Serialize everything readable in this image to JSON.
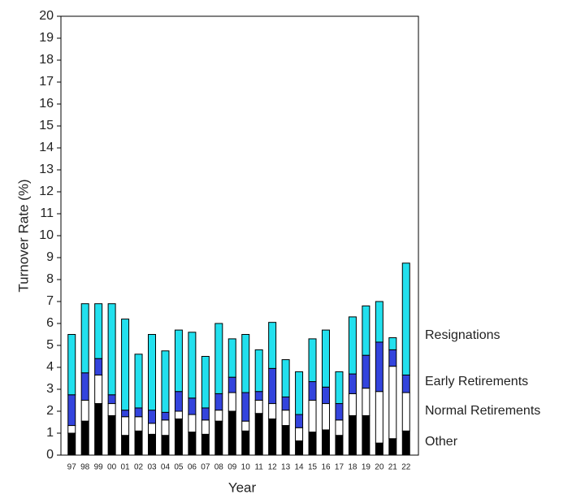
{
  "chart_data": {
    "type": "stacked_bar",
    "ylabel": "Turnover Rate (%)",
    "xlabel": "Year",
    "categories": [
      "97",
      "98",
      "99",
      "00",
      "01",
      "02",
      "03",
      "04",
      "05",
      "06",
      "07",
      "08",
      "09",
      "10",
      "11",
      "12",
      "13",
      "14",
      "15",
      "16",
      "17",
      "18",
      "19",
      "20",
      "21",
      "22"
    ],
    "series": [
      {
        "name": "Other",
        "color": "#000000",
        "values": [
          1.0,
          1.55,
          2.35,
          1.8,
          0.9,
          1.1,
          0.95,
          0.9,
          1.65,
          1.05,
          0.95,
          1.55,
          2.0,
          1.1,
          1.9,
          1.65,
          1.35,
          0.65,
          1.05,
          1.15,
          0.9,
          1.8,
          1.8,
          0.55,
          0.75,
          1.1
        ]
      },
      {
        "name": "Normal Retirements",
        "color": "#ffffff",
        "values": [
          0.35,
          0.95,
          1.3,
          0.55,
          0.85,
          0.65,
          0.5,
          0.7,
          0.35,
          0.8,
          0.65,
          0.5,
          0.85,
          0.45,
          0.6,
          0.7,
          0.7,
          0.6,
          1.45,
          1.2,
          0.7,
          1.0,
          1.25,
          2.35,
          3.3,
          1.75
        ]
      },
      {
        "name": "Early Retirements",
        "color": "#3344dd",
        "values": [
          1.4,
          1.25,
          0.75,
          0.4,
          0.3,
          0.4,
          0.6,
          0.35,
          0.9,
          0.75,
          0.55,
          0.75,
          0.7,
          1.3,
          0.4,
          1.6,
          0.6,
          0.6,
          0.85,
          0.75,
          0.75,
          0.9,
          1.5,
          2.25,
          0.75,
          0.8
        ]
      },
      {
        "name": "Resignations",
        "color": "#22e0ee",
        "values": [
          2.75,
          3.15,
          2.5,
          4.15,
          4.15,
          2.45,
          3.45,
          2.8,
          2.8,
          3.0,
          2.35,
          3.2,
          1.75,
          2.65,
          1.9,
          2.1,
          1.7,
          1.95,
          1.95,
          2.6,
          1.45,
          2.6,
          2.25,
          1.85,
          0.55,
          5.1
        ]
      }
    ],
    "ylim": [
      0,
      20
    ],
    "yticks": [
      0,
      1,
      2,
      3,
      4,
      5,
      6,
      7,
      8,
      9,
      10,
      11,
      12,
      13,
      14,
      15,
      16,
      17,
      18,
      19,
      20
    ]
  }
}
